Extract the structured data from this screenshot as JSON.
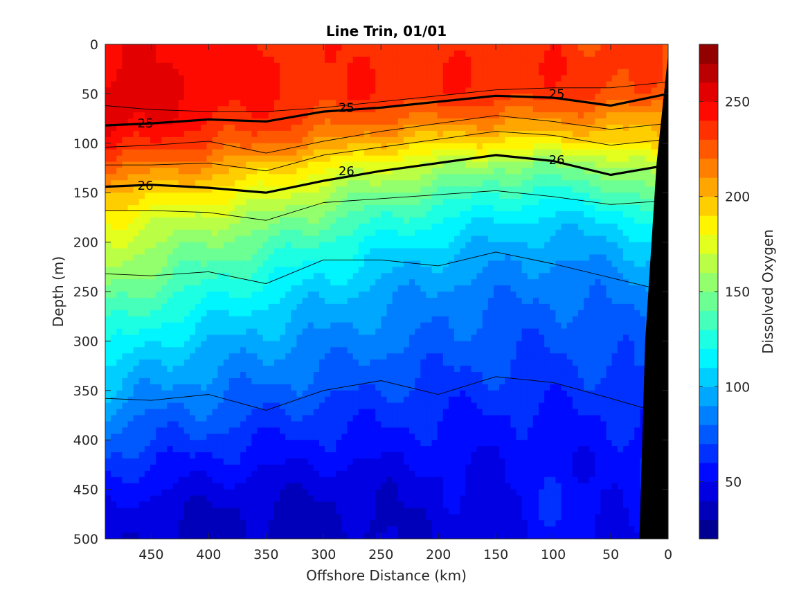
{
  "chart_data": {
    "type": "heatmap",
    "title": "Line Trin, 01/01",
    "xlabel": "Offshore Distance (km)",
    "ylabel": "Depth (m)",
    "colorbar_label": "Dissolved Oxygen",
    "colormap": "jet",
    "xlim": [
      490,
      0
    ],
    "ylim": [
      0,
      500
    ],
    "clim": [
      20,
      280
    ],
    "x_ticks": [
      450,
      400,
      350,
      300,
      250,
      200,
      150,
      100,
      50,
      0
    ],
    "y_ticks": [
      0,
      50,
      100,
      150,
      200,
      250,
      300,
      350,
      400,
      450,
      500
    ],
    "colorbar_ticks": [
      50,
      100,
      150,
      200,
      250
    ],
    "levels_step": 10,
    "x": [
      490,
      450,
      400,
      350,
      300,
      250,
      200,
      150,
      100,
      50,
      0
    ],
    "depths": [
      0,
      25,
      50,
      75,
      100,
      125,
      150,
      175,
      200,
      225,
      250,
      275,
      300,
      325,
      350,
      375,
      400,
      425,
      450,
      475,
      500
    ],
    "oxygen": [
      [
        250,
        248,
        246,
        238,
        236,
        236,
        236,
        236,
        236,
        232,
        225
      ],
      [
        252,
        250,
        248,
        240,
        238,
        238,
        238,
        238,
        238,
        235,
        228
      ],
      [
        256,
        252,
        248,
        240,
        238,
        238,
        238,
        236,
        234,
        232,
        225
      ],
      [
        262,
        250,
        242,
        236,
        228,
        222,
        218,
        216,
        214,
        210,
        205
      ],
      [
        245,
        238,
        230,
        222,
        210,
        198,
        192,
        188,
        186,
        188,
        200
      ],
      [
        225,
        215,
        208,
        195,
        182,
        172,
        162,
        150,
        148,
        155,
        172
      ],
      [
        200,
        195,
        186,
        178,
        162,
        150,
        140,
        130,
        128,
        135,
        150
      ],
      [
        182,
        176,
        166,
        158,
        145,
        132,
        122,
        112,
        108,
        112,
        128
      ],
      [
        170,
        162,
        150,
        142,
        128,
        118,
        108,
        100,
        96,
        100,
        112
      ],
      [
        160,
        150,
        138,
        128,
        115,
        105,
        96,
        90,
        88,
        90,
        100
      ],
      [
        148,
        138,
        125,
        115,
        104,
        96,
        88,
        84,
        82,
        84,
        90
      ],
      [
        136,
        125,
        112,
        104,
        95,
        88,
        82,
        78,
        76,
        78,
        84
      ],
      [
        124,
        112,
        102,
        95,
        88,
        82,
        78,
        74,
        72,
        74,
        78
      ],
      [
        112,
        100,
        92,
        86,
        80,
        76,
        72,
        70,
        68,
        70,
        74
      ],
      [
        100,
        90,
        84,
        78,
        74,
        70,
        66,
        64,
        64,
        66,
        70
      ],
      [
        88,
        80,
        76,
        70,
        66,
        62,
        60,
        58,
        58,
        60,
        64
      ],
      [
        76,
        70,
        66,
        60,
        58,
        56,
        56,
        54,
        54,
        56,
        60
      ],
      [
        66,
        60,
        56,
        52,
        50,
        50,
        50,
        50,
        52,
        54,
        58
      ],
      [
        56,
        50,
        46,
        44,
        42,
        42,
        46,
        48,
        58,
        52,
        56
      ],
      [
        48,
        44,
        40,
        38,
        38,
        40,
        44,
        48,
        60,
        50,
        54
      ],
      [
        44,
        40,
        38,
        36,
        36,
        38,
        42,
        46,
        56,
        48,
        52
      ]
    ],
    "density_contours": [
      {
        "label": "25",
        "bold": true,
        "depths": [
          82,
          80,
          76,
          78,
          68,
          64,
          58,
          52,
          54,
          62,
          50
        ]
      },
      {
        "label": "26",
        "bold": true,
        "depths": [
          144,
          142,
          145,
          150,
          138,
          128,
          120,
          112,
          118,
          132,
          122
        ]
      },
      {
        "label": "",
        "bold": false,
        "depths": [
          62,
          66,
          68,
          68,
          64,
          58,
          52,
          46,
          44,
          44,
          38
        ]
      },
      {
        "label": "",
        "bold": false,
        "depths": [
          104,
          102,
          98,
          110,
          98,
          88,
          80,
          72,
          78,
          86,
          80
        ]
      },
      {
        "label": "",
        "bold": false,
        "depths": [
          122,
          122,
          120,
          128,
          112,
          104,
          96,
          88,
          92,
          102,
          96
        ]
      },
      {
        "label": "",
        "bold": false,
        "depths": [
          168,
          168,
          170,
          178,
          160,
          156,
          152,
          148,
          154,
          162,
          158
        ]
      },
      {
        "label": "",
        "bold": false,
        "depths": [
          232,
          234,
          230,
          242,
          218,
          218,
          224,
          210,
          222,
          236,
          250
        ]
      },
      {
        "label": "",
        "bold": false,
        "depths": [
          358,
          360,
          354,
          370,
          350,
          340,
          354,
          336,
          342,
          358,
          375
        ]
      }
    ],
    "contour_labels": [
      {
        "text": "25",
        "x": 455,
        "depth": 80
      },
      {
        "text": "25",
        "x": 280,
        "depth": 64
      },
      {
        "text": "25",
        "x": 97,
        "depth": 50
      },
      {
        "text": "26",
        "x": 455,
        "depth": 143
      },
      {
        "text": "26",
        "x": 280,
        "depth": 128
      },
      {
        "text": "26",
        "x": 97,
        "depth": 117
      }
    ],
    "bathymetry": [
      [
        490,
        0
      ],
      [
        0,
        0
      ],
      [
        0,
        10
      ],
      [
        10,
        120
      ],
      [
        20,
        300
      ],
      [
        25,
        500
      ],
      [
        0,
        500
      ]
    ]
  }
}
